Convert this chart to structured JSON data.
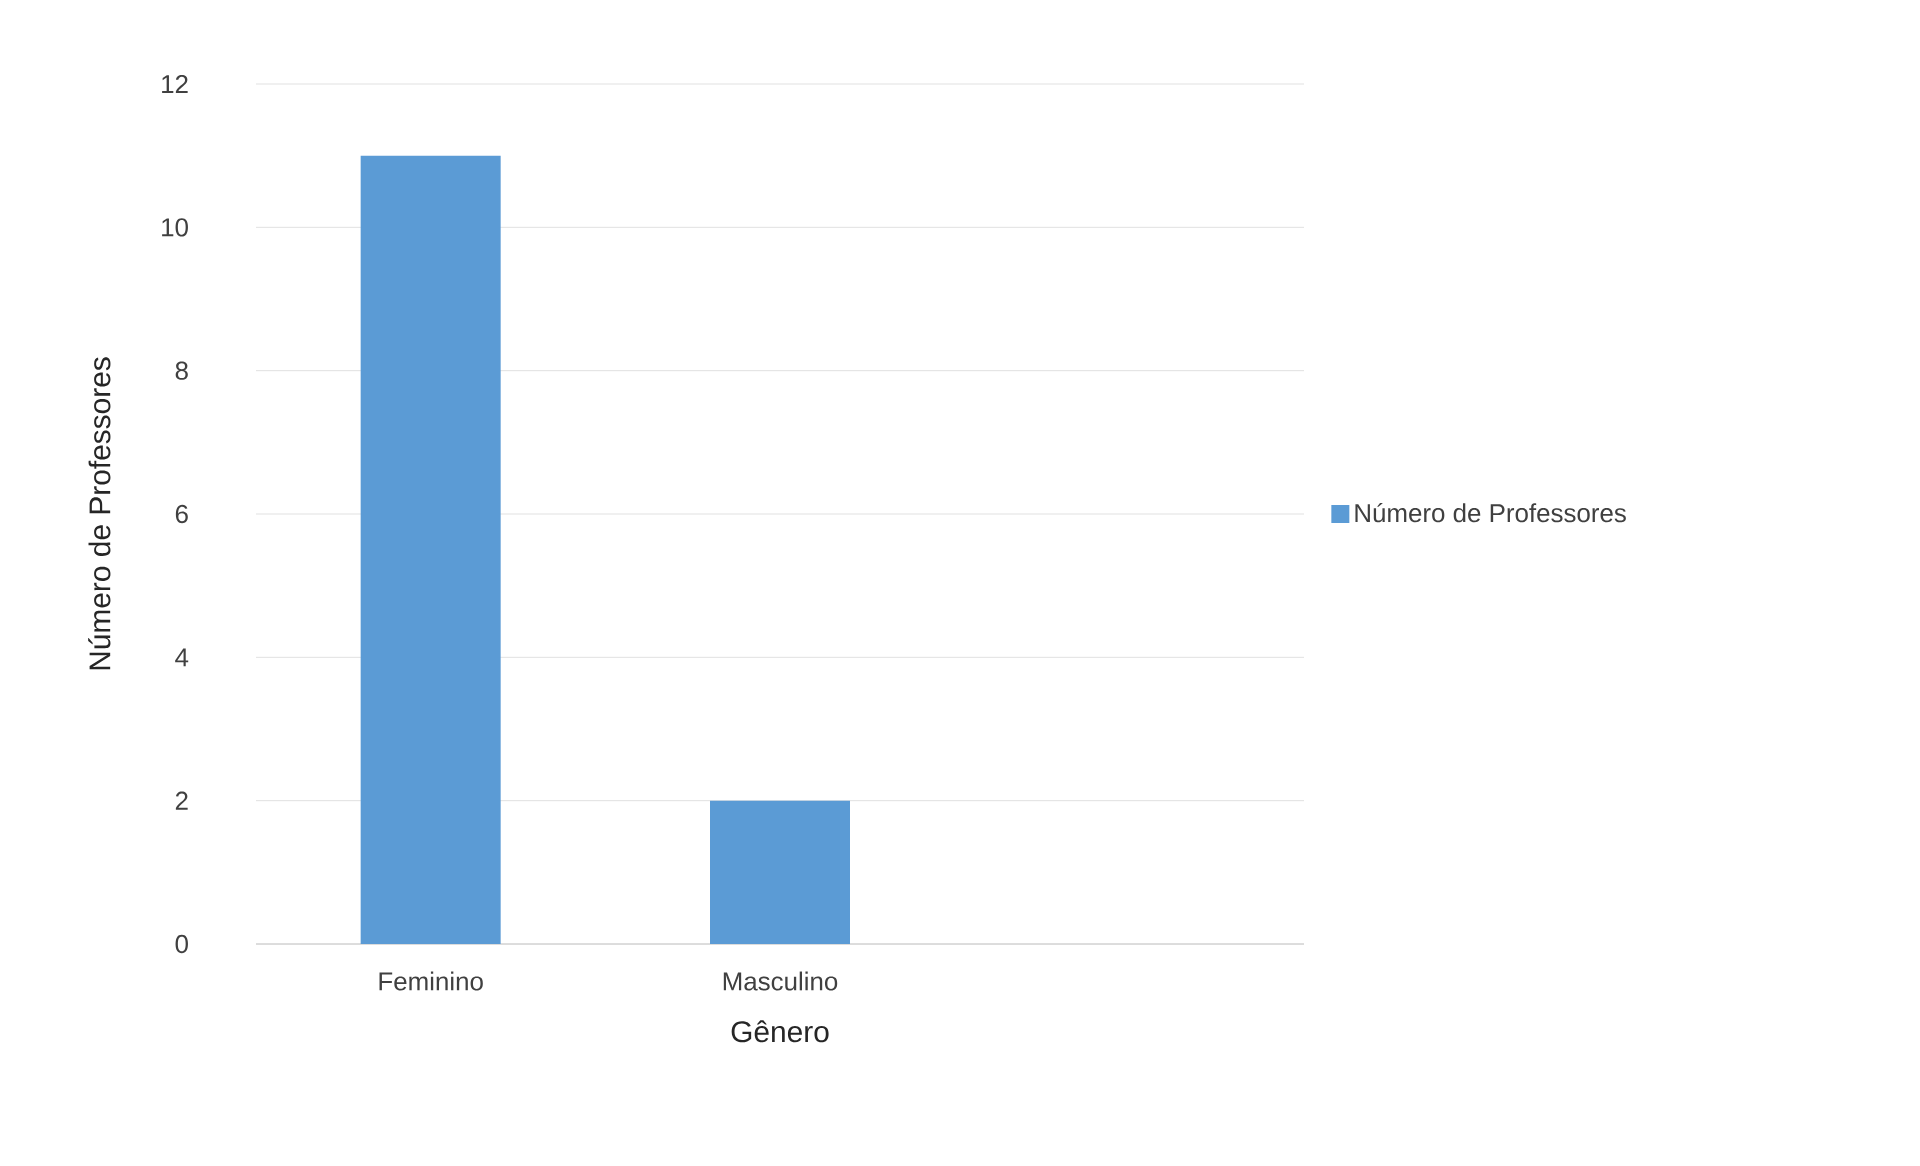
{
  "chart_data": {
    "type": "bar",
    "xlabel": "Gênero",
    "ylabel": "Número de Professores",
    "categories": [
      "Feminino",
      "Masculino",
      null
    ],
    "series": [
      {
        "name": "Número de Professores",
        "color": "#5b9bd5",
        "values": [
          11,
          2,
          null
        ]
      }
    ],
    "ylim": [
      0,
      12
    ],
    "yticks": [
      0,
      2,
      4,
      6,
      8,
      10,
      12
    ],
    "grid": "y",
    "legend": "right"
  }
}
